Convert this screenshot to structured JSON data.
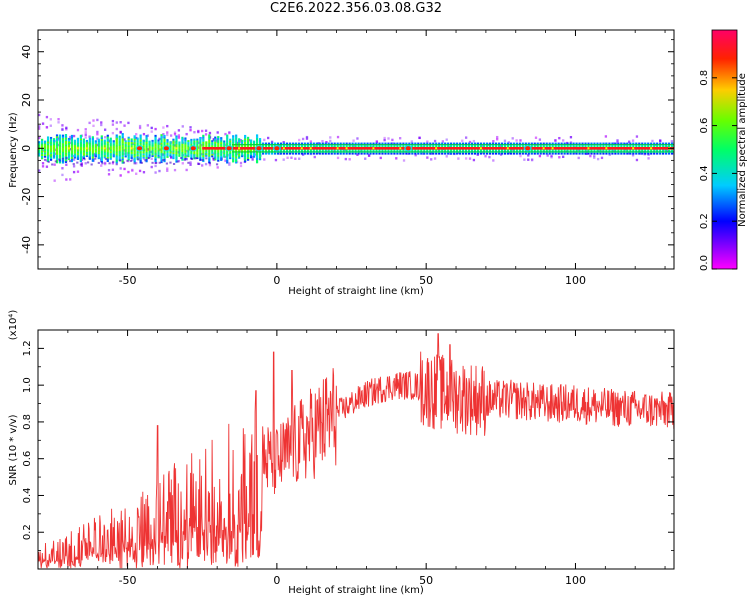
{
  "title": "C2E6.2022.356.03.08.G32",
  "chart_data": [
    {
      "type": "heatmap",
      "xlabel": "Height of straight line (km)",
      "ylabel": "Frequency (Hz)",
      "xlim": [
        -80,
        133
      ],
      "ylim": [
        -50,
        49
      ],
      "xticks": [
        "-50",
        "0",
        "50",
        "100"
      ],
      "yticks": [
        "-40",
        "-20",
        "0",
        "20",
        "40"
      ],
      "ytick_values": [
        -40,
        -20,
        0,
        20,
        40
      ],
      "xtick_values": [
        -50,
        0,
        50,
        100
      ],
      "colorbar": {
        "label": "Normalized spectral amplitude",
        "range": [
          0,
          1
        ],
        "ticks": [
          "0.0",
          "0.2",
          "0.4",
          "0.6",
          "0.8"
        ],
        "tick_values": [
          0.0,
          0.2,
          0.4,
          0.6,
          0.8
        ],
        "colormap": "gist_rainbow (magenta-blue-cyan-green-yellow-red)"
      },
      "peak_frequency_hz": 0,
      "bright_peaks_km": [
        -46,
        -37,
        -28,
        -16,
        -6,
        0,
        44,
        84
      ]
    },
    {
      "type": "line",
      "xlabel": "Height of straight line (km)",
      "ylabel": "SNR (10 * v/v)",
      "multiplier_label": "(x10⁴)",
      "xlim": [
        -80,
        133
      ],
      "ylim": [
        0,
        1.3
      ],
      "xticks": [
        "-50",
        "0",
        "50",
        "100"
      ],
      "xtick_values": [
        -50,
        0,
        50,
        100
      ],
      "yticks": [
        "0.2",
        "0.4",
        "0.6",
        "0.8",
        "1.0",
        "1.2"
      ],
      "ytick_values": [
        0.2,
        0.4,
        0.6,
        0.8,
        1.0,
        1.2
      ],
      "line_color": "#ee3333",
      "series": [
        {
          "x": [
            -80,
            -70,
            -60,
            -50,
            -45,
            -40,
            -35,
            -30,
            -25,
            -20,
            -15,
            -10,
            -5,
            0,
            5,
            10,
            15,
            20,
            25,
            30,
            35,
            40,
            45,
            50,
            55,
            60,
            70,
            80,
            90,
            100,
            110,
            120,
            133
          ],
          "values": [
            0.08,
            0.12,
            0.18,
            0.22,
            0.26,
            0.3,
            0.35,
            0.38,
            0.42,
            0.46,
            0.5,
            0.55,
            0.6,
            0.58,
            0.65,
            0.72,
            0.78,
            0.85,
            0.9,
            0.95,
            0.98,
            1.0,
            1.0,
            0.98,
            0.96,
            0.94,
            0.92,
            0.92,
            0.9,
            0.9,
            0.88,
            0.87,
            0.86
          ]
        }
      ],
      "spikes": [
        {
          "x": -40,
          "y": 0.78
        },
        {
          "x": -7,
          "y": 0.97
        },
        {
          "x": -1,
          "y": 1.18
        },
        {
          "x": 5,
          "y": 1.08
        },
        {
          "x": 54,
          "y": 1.28
        },
        {
          "x": 58,
          "y": 1.22
        }
      ]
    }
  ]
}
